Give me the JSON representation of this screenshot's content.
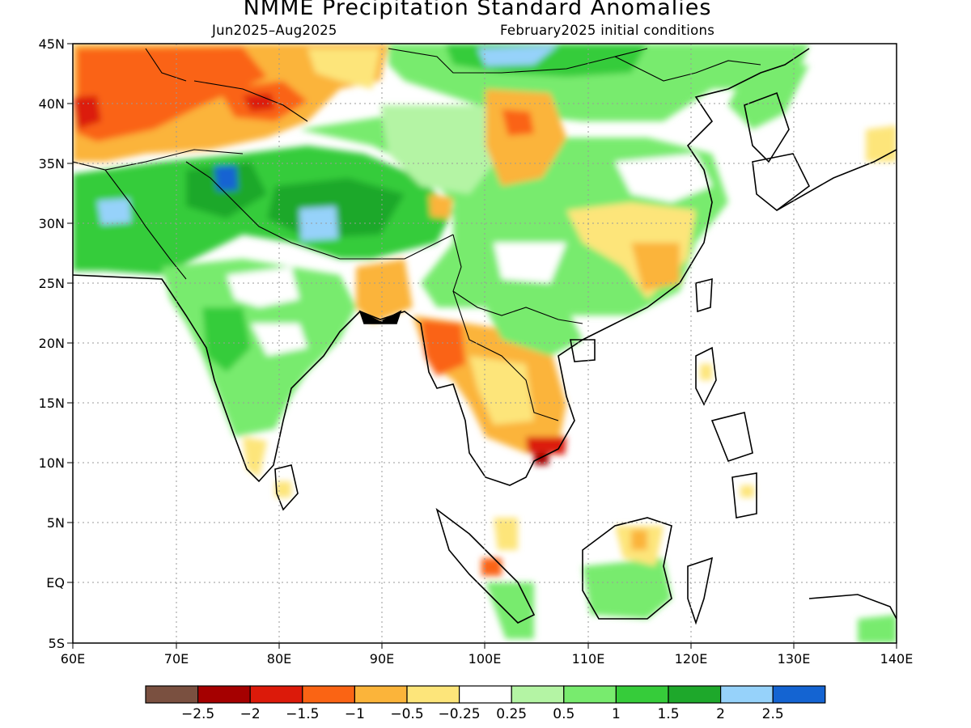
{
  "title": "NMME Precipitation Standard Anomalies",
  "period": "Jun2025–Aug2025",
  "initial_conditions": "February2025 initial conditions",
  "map": {
    "lon_range": [
      60,
      140
    ],
    "lat_range": [
      -5,
      45
    ],
    "lon_ticks": [
      "60E",
      "70E",
      "80E",
      "90E",
      "100E",
      "110E",
      "120E",
      "130E",
      "140E"
    ],
    "lat_ticks": [
      "45N",
      "40N",
      "35N",
      "30N",
      "25N",
      "20N",
      "15N",
      "10N",
      "5N",
      "EQ",
      "5S"
    ],
    "gridlines": "dotted"
  },
  "colorbar": {
    "colors": [
      "#7a5040",
      "#a50000",
      "#dc1a0a",
      "#fa6414",
      "#fbb43a",
      "#fde57a",
      "#ffffff",
      "#b4f4a4",
      "#78eb6e",
      "#36cc3a",
      "#1ea82b",
      "#96d2fa",
      "#1464d2"
    ],
    "labels": [
      "−2.5",
      "−2",
      "−1.5",
      "−1",
      "−0.5",
      "−0.25",
      "0.25",
      "0.5",
      "1",
      "1.5",
      "2",
      "2.5"
    ]
  },
  "anomaly_regions": [
    {
      "region": "Central Asia / Kazakhstan",
      "value": -1
    },
    {
      "region": "Iran / Afghanistan north",
      "value": -1.5
    },
    {
      "region": "Xinjiang (near 78E 40N)",
      "value": -2
    },
    {
      "region": "Pakistan / NW India",
      "value": 1.5
    },
    {
      "region": "Indian subcontinent",
      "value": 1
    },
    {
      "region": "Tibetan Plateau",
      "value": 1.5
    },
    {
      "region": "Gansu / Inner Mongolia (103E 39N)",
      "value": -1
    },
    {
      "region": "Mongolia",
      "value": 1
    },
    {
      "region": "Myanmar / Thailand / Indochina",
      "value": -1
    },
    {
      "region": "Cambodia (105E 11N)",
      "value": -2
    },
    {
      "region": "Southern China",
      "value": -0.5
    },
    {
      "region": "Borneo (south)",
      "value": 1
    },
    {
      "region": "Sumatra (south)",
      "value": 1
    }
  ]
}
